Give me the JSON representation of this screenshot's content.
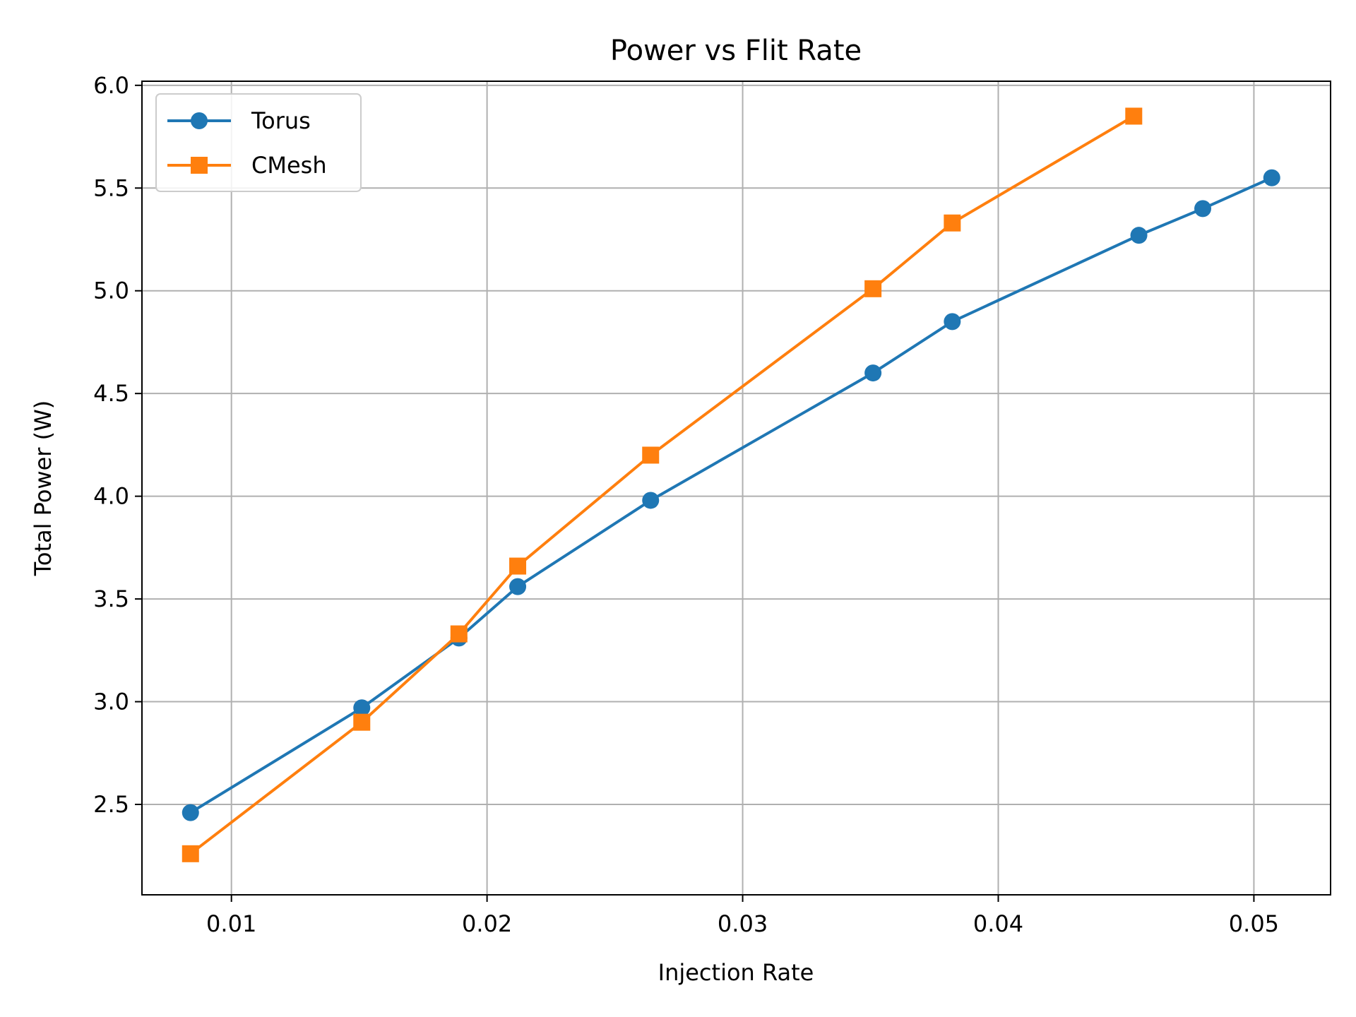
{
  "chart_data": {
    "type": "line",
    "title": "Power vs Flit Rate",
    "xlabel": "Injection Rate",
    "ylabel": "Total Power (W)",
    "xlim": [
      0.0065,
      0.053
    ],
    "ylim": [
      2.06,
      6.02
    ],
    "xticks": [
      0.01,
      0.02,
      0.03,
      0.04,
      0.05
    ],
    "xtick_labels": [
      "0.01",
      "0.02",
      "0.03",
      "0.04",
      "0.05"
    ],
    "yticks": [
      2.5,
      3.0,
      3.5,
      4.0,
      4.5,
      5.0,
      5.5,
      6.0
    ],
    "ytick_labels": [
      "2.5",
      "3.0",
      "3.5",
      "4.0",
      "4.5",
      "5.0",
      "5.5",
      "6.0"
    ],
    "grid": true,
    "legend_position": "top-left",
    "series": [
      {
        "name": "Torus",
        "color": "#1f77b4",
        "marker": "circle",
        "x": [
          0.0084,
          0.0151,
          0.0189,
          0.0212,
          0.0264,
          0.0351,
          0.0382,
          0.0455,
          0.048,
          0.0507
        ],
        "y": [
          2.46,
          2.97,
          3.31,
          3.56,
          3.98,
          4.6,
          4.85,
          5.27,
          5.4,
          5.55
        ]
      },
      {
        "name": "CMesh",
        "color": "#ff7f0e",
        "marker": "square",
        "x": [
          0.0084,
          0.0151,
          0.0189,
          0.0212,
          0.0264,
          0.0351,
          0.0382,
          0.0453
        ],
        "y": [
          2.26,
          2.9,
          3.33,
          3.66,
          4.2,
          5.01,
          5.33,
          5.85
        ]
      }
    ]
  }
}
